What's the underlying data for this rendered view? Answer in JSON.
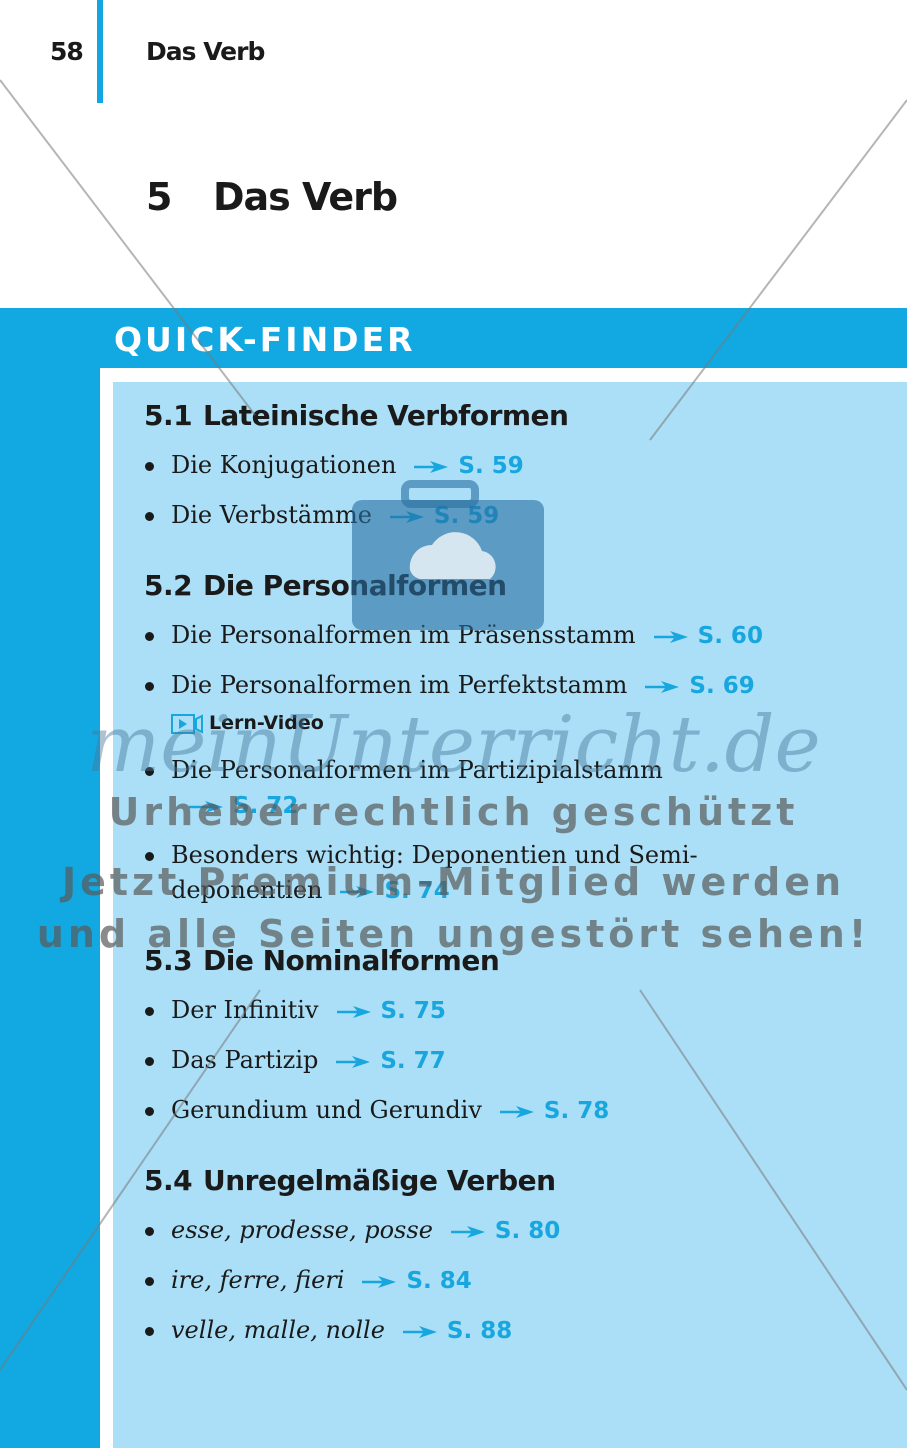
{
  "header": {
    "page_number": "58",
    "running_title": "Das Verb"
  },
  "chapter": {
    "number": "5",
    "title": "Das Verb"
  },
  "quick_finder": {
    "label": "QUICK-FINDER",
    "sections": [
      {
        "number": "5.1",
        "title": "Lateinische Verbformen",
        "items": [
          {
            "text": "Die Konjugationen",
            "ref": "S. 59"
          },
          {
            "text": "Die Verbstämme",
            "ref": "S. 59"
          }
        ]
      },
      {
        "number": "5.2",
        "title": "Die Personalformen",
        "items": [
          {
            "text": "Die Personalformen im Präsensstamm",
            "ref": "S. 60"
          },
          {
            "text": "Die Personalformen im Perfektstamm",
            "ref": "S. 69",
            "extra": "Lern-Video"
          },
          {
            "text": "Die Personalformen im Partizipialstamm",
            "ref": "S. 72"
          },
          {
            "text": "Besonders wichtig: Deponentien und Semi-deponentien",
            "ref": "S. 74"
          }
        ]
      },
      {
        "number": "5.3",
        "title": "Die Nominalformen",
        "items": [
          {
            "text": "Der Infinitiv",
            "ref": "S. 75"
          },
          {
            "text": "Das Partizip",
            "ref": "S. 77"
          },
          {
            "text": "Gerundium und Gerundiv",
            "ref": "S. 78"
          }
        ]
      },
      {
        "number": "5.4",
        "title": "Unregelmäßige Verben",
        "items": [
          {
            "text": "esse, prodesse, posse",
            "ref": "S. 80"
          },
          {
            "text": "ire, ferre, fieri",
            "ref": "S. 84"
          },
          {
            "text": "velle, malle, nolle",
            "ref": "S. 88"
          }
        ]
      }
    ]
  },
  "watermark": {
    "brand": "meinUnterricht.de",
    "lines": [
      "Urheberrechtlich geschützt",
      "Jetzt Premium-Mitglied werden",
      "und alle Seiten ungestört sehen!"
    ]
  }
}
